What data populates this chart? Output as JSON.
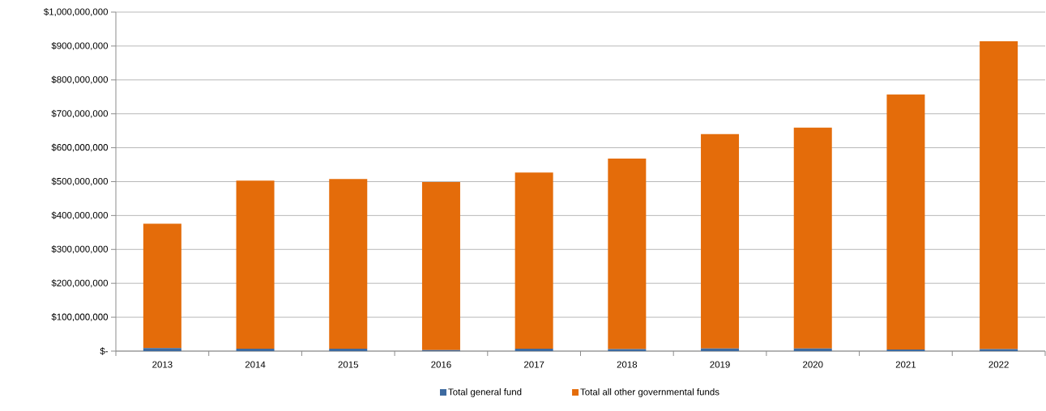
{
  "chart_data": {
    "type": "bar",
    "stacked": true,
    "categories": [
      "2013",
      "2014",
      "2015",
      "2016",
      "2017",
      "2018",
      "2019",
      "2020",
      "2021",
      "2022"
    ],
    "series": [
      {
        "name": "Total general fund",
        "color": "#3d6aa0",
        "values": [
          9000000,
          7000000,
          7000000,
          3000000,
          7000000,
          6000000,
          8000000,
          8000000,
          5000000,
          6000000
        ]
      },
      {
        "name": "Total all other governmental funds",
        "color": "#e46c0a",
        "values": [
          367000000,
          496000000,
          501000000,
          496000000,
          520000000,
          562000000,
          632000000,
          651000000,
          752000000,
          908000000
        ]
      }
    ],
    "ylim": [
      0,
      1000000000
    ],
    "yticks": [
      {
        "value": 0,
        "label": "$-"
      },
      {
        "value": 100000000,
        "label": "$100,000,000"
      },
      {
        "value": 200000000,
        "label": "$200,000,000"
      },
      {
        "value": 300000000,
        "label": "$300,000,000"
      },
      {
        "value": 400000000,
        "label": "$400,000,000"
      },
      {
        "value": 500000000,
        "label": "$500,000,000"
      },
      {
        "value": 600000000,
        "label": "$600,000,000"
      },
      {
        "value": 700000000,
        "label": "$700,000,000"
      },
      {
        "value": 800000000,
        "label": "$800,000,000"
      },
      {
        "value": 900000000,
        "label": "$900,000,000"
      },
      {
        "value": 1000000000,
        "label": "$1,000,000,000"
      }
    ],
    "grid": "y",
    "legend": "bottom"
  }
}
